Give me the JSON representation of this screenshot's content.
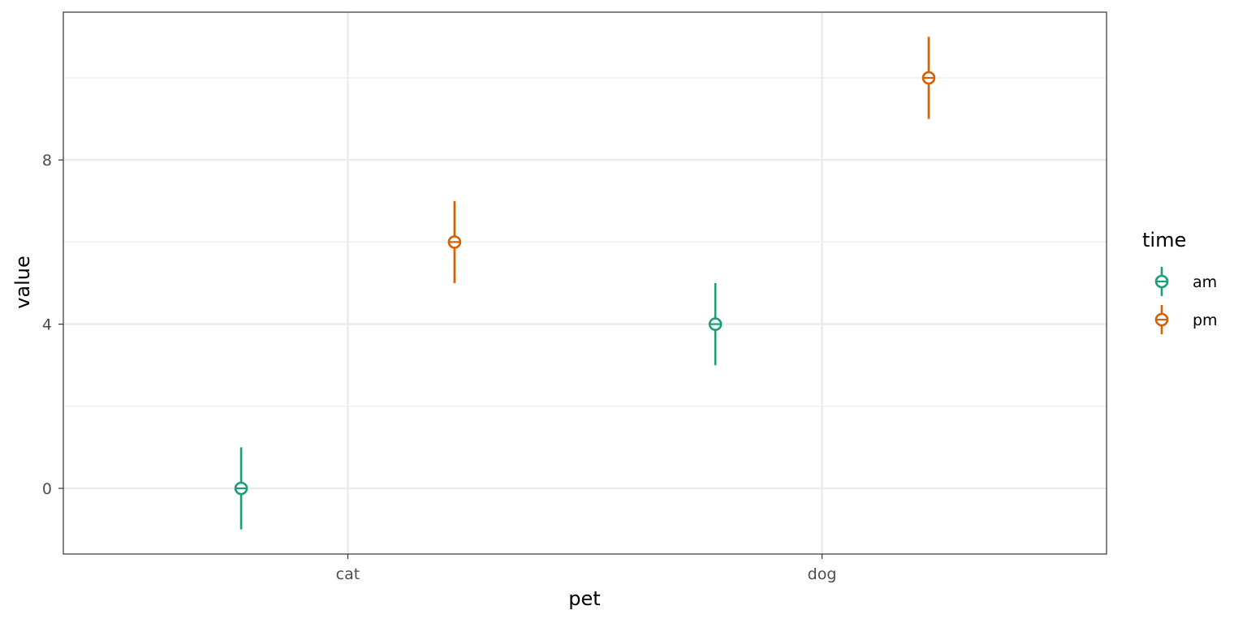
{
  "chart_data": {
    "type": "scatter",
    "title": "",
    "xlabel": "pet",
    "ylabel": "value",
    "categories": [
      "cat",
      "dog"
    ],
    "ylim": [
      -1.6,
      11.6
    ],
    "y_ticks": [
      0,
      4,
      8
    ],
    "y_tick_labels": [
      "0",
      "4",
      "8"
    ],
    "dodge_width": 0.9,
    "grid": true,
    "legend": {
      "title": "time",
      "placement": "right"
    },
    "series": [
      {
        "name": "am",
        "color": "#1b9e77",
        "points": [
          {
            "x": "cat",
            "y": 0,
            "ymin": -1,
            "ymax": 1
          },
          {
            "x": "dog",
            "y": 4,
            "ymin": 3,
            "ymax": 5
          }
        ]
      },
      {
        "name": "pm",
        "color": "#d95f02",
        "points": [
          {
            "x": "cat",
            "y": 6,
            "ymin": 5,
            "ymax": 7
          },
          {
            "x": "dog",
            "y": 10,
            "ymin": 9,
            "ymax": 11
          }
        ]
      }
    ]
  }
}
